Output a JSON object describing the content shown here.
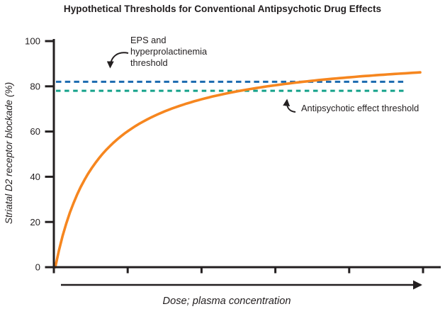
{
  "figure": {
    "title": "Hypothetical Thresholds for Conventional Antipsychotic Drug Effects"
  },
  "chart_data": {
    "type": "line",
    "title": "Hypothetical Thresholds for Conventional Antipsychotic Drug Effects",
    "xlabel": "Dose; plasma concentration",
    "ylabel": "Striatal D2 receptor blockade (%)",
    "ylim": [
      0,
      100
    ],
    "yticks": [
      0,
      20,
      40,
      60,
      80,
      100
    ],
    "x_tick_count": 6,
    "x_axis_note": "x axis has unlabeled ticks; dose in arbitrary units 0–100",
    "grid": false,
    "legend": "none",
    "series": [
      {
        "name": "Striatal D2 receptor blockade vs dose (saturating dose–response curve)",
        "color": "#F6861F",
        "model": {
          "type": "michaelis-menten",
          "vmax": 96.5,
          "km": 12
        },
        "x": [
          0,
          5,
          10,
          15,
          20,
          25,
          30,
          40,
          50,
          60,
          70,
          80,
          90,
          100
        ],
        "y": [
          0,
          28.4,
          43.9,
          53.6,
          60.3,
          65.2,
          68.9,
          74.2,
          77.8,
          80.4,
          82.4,
          83.9,
          85.1,
          86.2
        ]
      }
    ],
    "thresholds": [
      {
        "label": "EPS and hyperprolactinemia threshold",
        "value": 82,
        "color": "#1C6BB0",
        "style": "dashed"
      },
      {
        "label": "Antipsychotic effect threshold",
        "value": 78,
        "color": "#15A28B",
        "style": "dashed"
      }
    ]
  },
  "annotations": {
    "eps": {
      "line1": "EPS and",
      "line2": "hyperprolactinemia",
      "line3": "threshold"
    },
    "antipsychotic": {
      "label": "Antipsychotic effect threshold"
    }
  },
  "colors": {
    "curve_orange": "#F6861F",
    "eps_threshold_blue": "#1C6BB0",
    "antipsychotic_threshold_teal": "#15A28B",
    "ink": "#231F20",
    "background": "#FFFFFF"
  }
}
